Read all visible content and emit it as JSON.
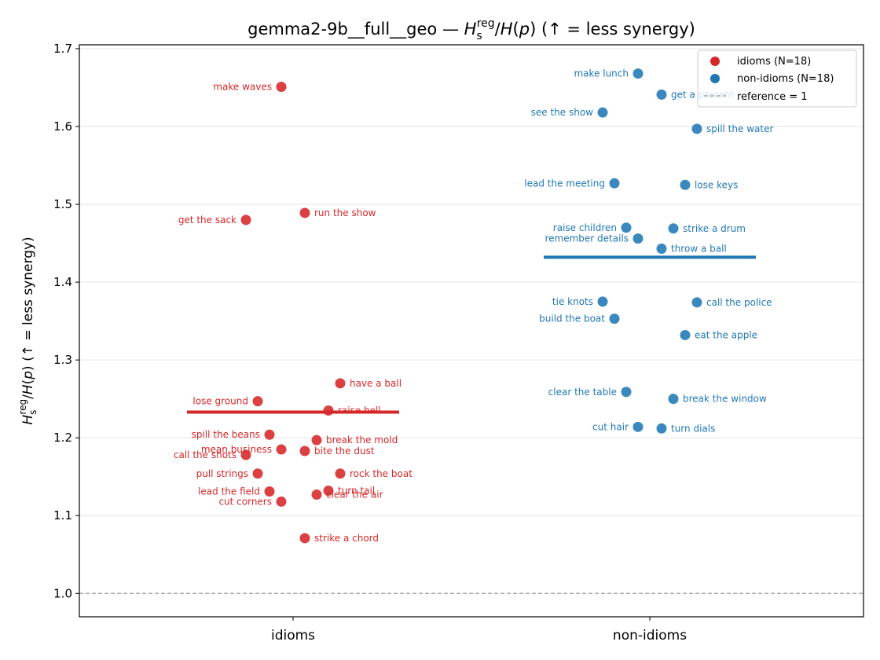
{
  "chart_data": {
    "type": "scatter",
    "title_prefix": "gemma2-9b__full__geo — ",
    "title_suffix": " (↑ = less synergy)",
    "ylabel_suffix": " (↑ = less synergy)",
    "categories": [
      "idioms",
      "non-idioms"
    ],
    "ylim": [
      0.97,
      1.705
    ],
    "yticks": [
      1.0,
      1.1,
      1.2,
      1.3,
      1.4,
      1.5,
      1.6,
      1.7
    ],
    "ytick_labels": [
      "1.0",
      "1.1",
      "1.2",
      "1.3",
      "1.4",
      "1.5",
      "1.6",
      "1.7"
    ],
    "grid": "horizontal",
    "legend_position": "top-right",
    "reference": {
      "value": 1.0,
      "label": "reference = 1"
    },
    "colors": {
      "idioms": "#d62728",
      "non_idioms": "#1f77b4",
      "reference": "#999999"
    },
    "series": [
      {
        "name": "idioms (N=18)",
        "category": "idioms",
        "mean": 1.233,
        "points": [
          {
            "label": "make waves",
            "offset": -0.05,
            "y": 1.651,
            "side": "left"
          },
          {
            "label": "run the show",
            "offset": 0.05,
            "y": 1.489,
            "side": "right"
          },
          {
            "label": "get the sack",
            "offset": -0.2,
            "y": 1.48,
            "side": "left"
          },
          {
            "label": "have a ball",
            "offset": 0.2,
            "y": 1.27,
            "side": "right"
          },
          {
            "label": "lose ground",
            "offset": -0.15,
            "y": 1.247,
            "side": "left"
          },
          {
            "label": "raise hell",
            "offset": 0.15,
            "y": 1.235,
            "side": "right"
          },
          {
            "label": "spill the beans",
            "offset": -0.1,
            "y": 1.204,
            "side": "left"
          },
          {
            "label": "break the mold",
            "offset": 0.1,
            "y": 1.197,
            "side": "right"
          },
          {
            "label": "mean business",
            "offset": -0.05,
            "y": 1.185,
            "side": "left"
          },
          {
            "label": "bite the dust",
            "offset": 0.05,
            "y": 1.183,
            "side": "right"
          },
          {
            "label": "call the shots",
            "offset": -0.2,
            "y": 1.178,
            "side": "left"
          },
          {
            "label": "pull strings",
            "offset": -0.15,
            "y": 1.154,
            "side": "left"
          },
          {
            "label": "rock the boat",
            "offset": 0.2,
            "y": 1.154,
            "side": "right"
          },
          {
            "label": "turn tail",
            "offset": 0.15,
            "y": 1.132,
            "side": "right"
          },
          {
            "label": "lead the field",
            "offset": -0.1,
            "y": 1.131,
            "side": "left"
          },
          {
            "label": "clear the air",
            "offset": 0.1,
            "y": 1.127,
            "side": "right"
          },
          {
            "label": "cut corners",
            "offset": -0.05,
            "y": 1.118,
            "side": "left"
          },
          {
            "label": "strike a chord",
            "offset": 0.05,
            "y": 1.071,
            "side": "right"
          }
        ]
      },
      {
        "name": "non-idioms (N=18)",
        "category": "non-idioms",
        "mean": 1.432,
        "points": [
          {
            "label": "make lunch",
            "offset": -0.05,
            "y": 1.668,
            "side": "left"
          },
          {
            "label": "get a present",
            "offset": 0.05,
            "y": 1.641,
            "side": "right"
          },
          {
            "label": "see the show",
            "offset": -0.2,
            "y": 1.618,
            "side": "left"
          },
          {
            "label": "spill the water",
            "offset": 0.2,
            "y": 1.597,
            "side": "right"
          },
          {
            "label": "lead the meeting",
            "offset": -0.15,
            "y": 1.527,
            "side": "left"
          },
          {
            "label": "lose keys",
            "offset": 0.15,
            "y": 1.525,
            "side": "right"
          },
          {
            "label": "raise children",
            "offset": -0.1,
            "y": 1.47,
            "side": "left"
          },
          {
            "label": "strike a drum",
            "offset": 0.1,
            "y": 1.469,
            "side": "right"
          },
          {
            "label": "remember details",
            "offset": -0.05,
            "y": 1.456,
            "side": "left"
          },
          {
            "label": "throw a ball",
            "offset": 0.05,
            "y": 1.443,
            "side": "right"
          },
          {
            "label": "tie knots",
            "offset": -0.2,
            "y": 1.375,
            "side": "left"
          },
          {
            "label": "call the police",
            "offset": 0.2,
            "y": 1.374,
            "side": "right"
          },
          {
            "label": "build the boat",
            "offset": -0.15,
            "y": 1.353,
            "side": "left"
          },
          {
            "label": "eat the apple",
            "offset": 0.15,
            "y": 1.332,
            "side": "right"
          },
          {
            "label": "clear the table",
            "offset": -0.1,
            "y": 1.259,
            "side": "left"
          },
          {
            "label": "break the window",
            "offset": 0.1,
            "y": 1.25,
            "side": "right"
          },
          {
            "label": "cut hair",
            "offset": -0.05,
            "y": 1.214,
            "side": "left"
          },
          {
            "label": "turn dials",
            "offset": 0.05,
            "y": 1.212,
            "side": "right"
          }
        ]
      }
    ]
  }
}
